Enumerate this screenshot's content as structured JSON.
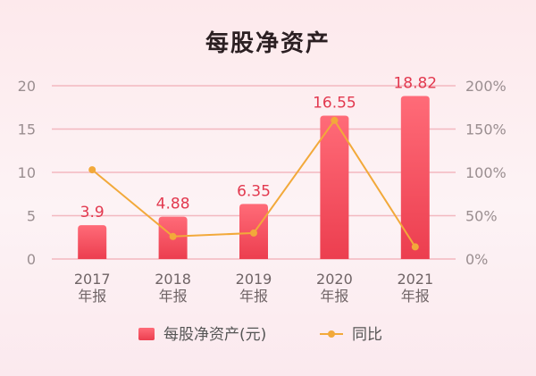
{
  "title": "每股净资产",
  "chart_data": {
    "type": "bar",
    "categories": [
      {
        "year": "2017",
        "sub": "年报"
      },
      {
        "year": "2018",
        "sub": "年报"
      },
      {
        "year": "2019",
        "sub": "年报"
      },
      {
        "year": "2020",
        "sub": "年报"
      },
      {
        "year": "2021",
        "sub": "年报"
      }
    ],
    "series": [
      {
        "name": "每股净资产(元)",
        "type": "bar",
        "axis": "left",
        "values": [
          3.9,
          4.88,
          6.35,
          16.55,
          18.82
        ],
        "labels": [
          "3.9",
          "4.88",
          "6.35",
          "16.55",
          "18.82"
        ]
      },
      {
        "name": "同比",
        "type": "line",
        "axis": "right",
        "values": [
          103,
          26,
          30,
          160,
          14
        ]
      }
    ],
    "ylim_left": [
      0,
      20
    ],
    "left_ticks": [
      "0",
      "5",
      "10",
      "15",
      "20"
    ],
    "ylim_right": [
      0,
      200
    ],
    "right_ticks": [
      "0%",
      "50%",
      "100%",
      "150%",
      "200%"
    ],
    "grid": true,
    "legend_position": "bottom",
    "colors": {
      "bar_top": "#ff6b78",
      "bar_bottom": "#ec3e4f",
      "line": "#f2a93a",
      "label": "#e2394f",
      "grid": "#f3b8c0"
    }
  }
}
